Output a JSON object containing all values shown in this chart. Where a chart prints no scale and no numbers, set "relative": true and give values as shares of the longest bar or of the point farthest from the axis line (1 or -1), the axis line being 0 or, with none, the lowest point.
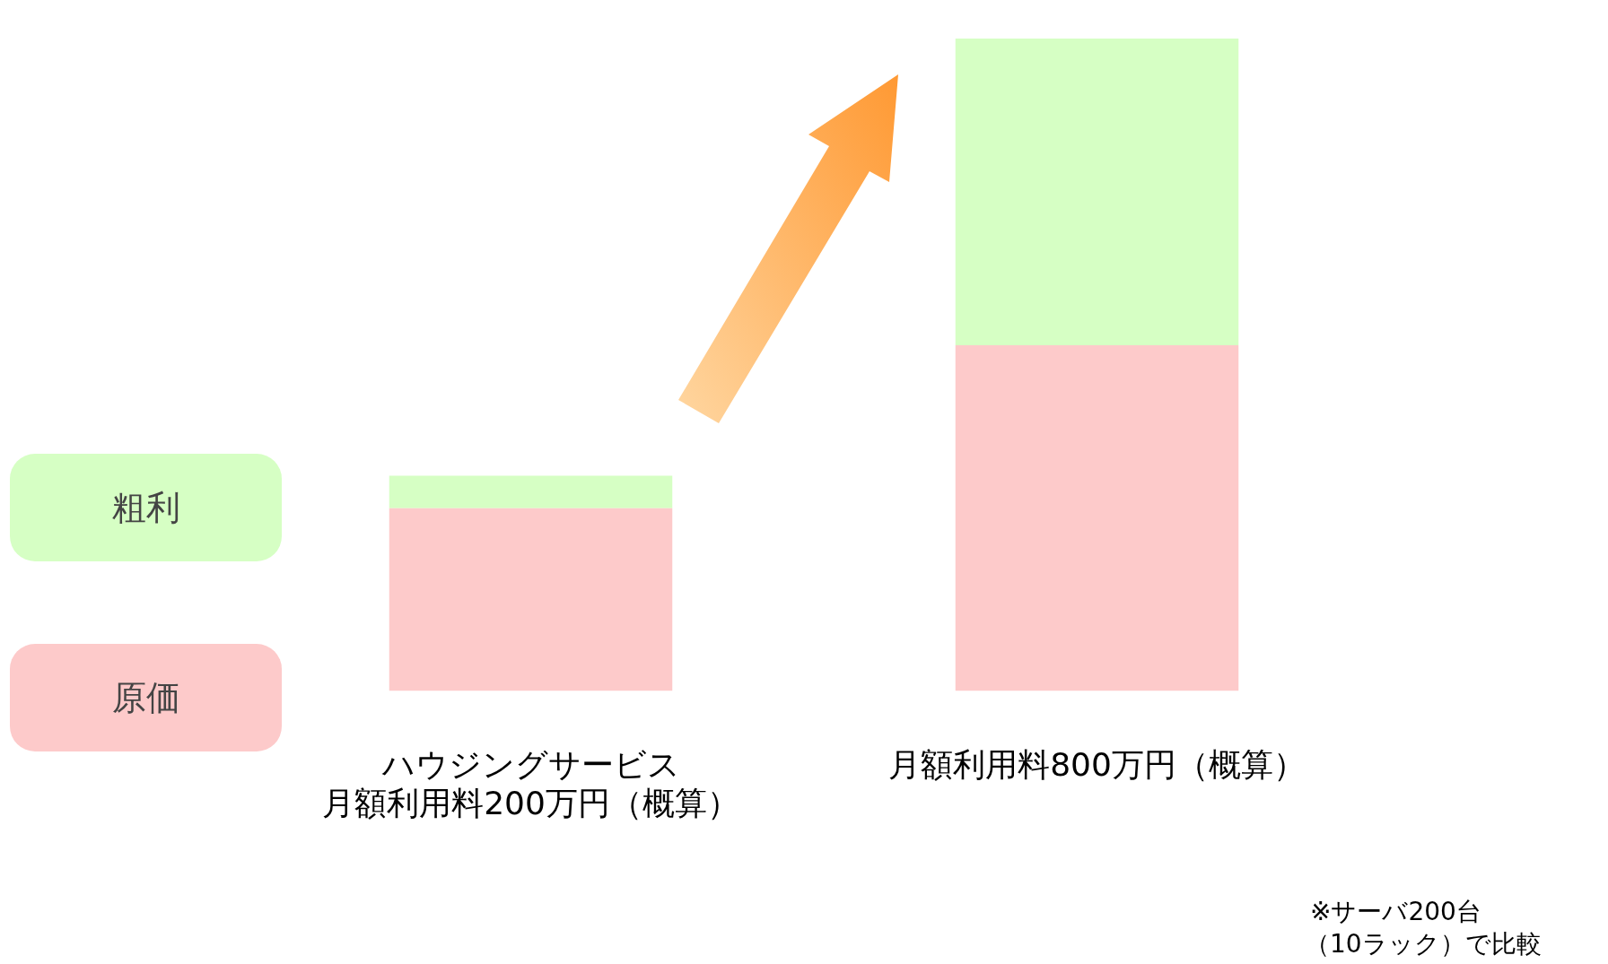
{
  "chart_data": {
    "type": "bar",
    "stacked": true,
    "relative": true,
    "legend": "left",
    "categories": [
      "ハウジングサービス月額利用料200万円（概算）",
      "月額利用料800万円（概算）"
    ],
    "series": [
      {
        "name": "原価",
        "color": "#fdcaca",
        "values": [
          0.28,
          0.53
        ]
      },
      {
        "name": "粗利",
        "color": "#d6ffc4",
        "values": [
          0.05,
          0.47
        ]
      }
    ],
    "annotations": [
      "※サーバ200台",
      "（10ラック）で比較"
    ]
  }
}
